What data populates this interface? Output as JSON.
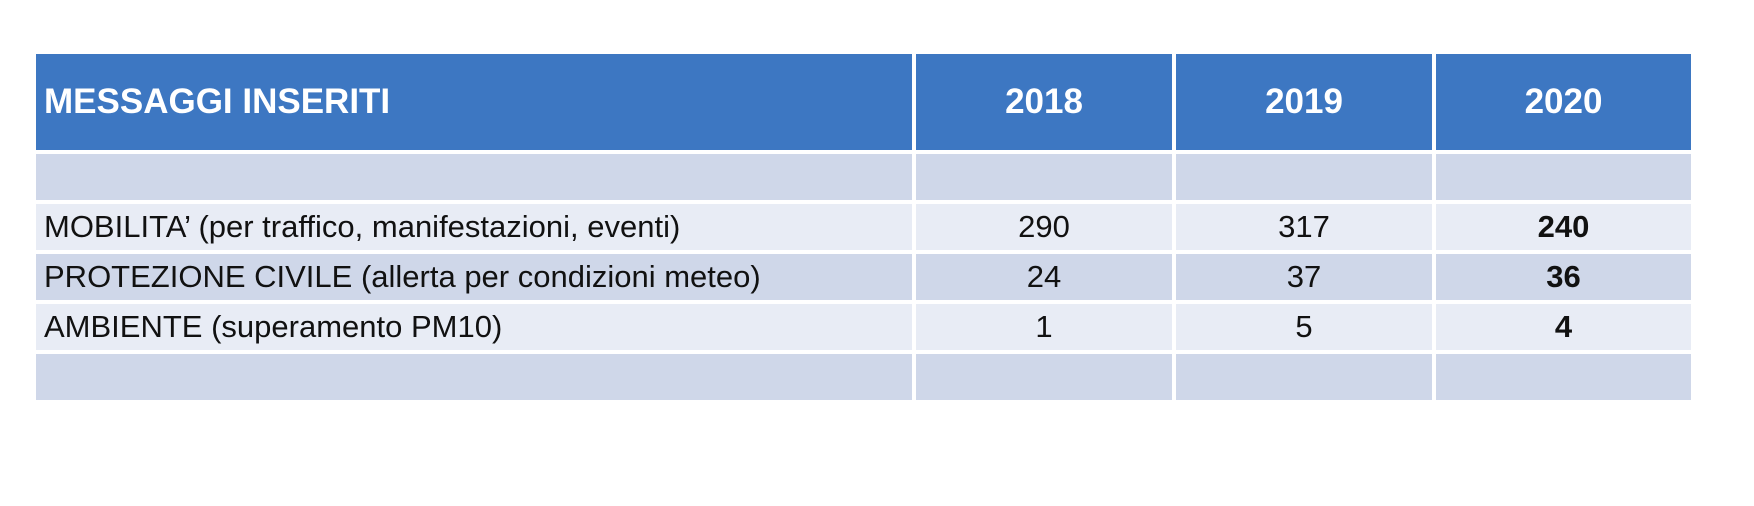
{
  "table": {
    "header": {
      "label": "MESSAGGI INSERITI",
      "years": [
        "2018",
        "2019",
        "2020"
      ]
    },
    "rows": [
      {
        "label": "",
        "values": [
          "",
          "",
          ""
        ]
      },
      {
        "label": "MOBILITA’ (per traffico, manifestazioni, eventi)",
        "values": [
          "290",
          "317",
          "240"
        ]
      },
      {
        "label": "PROTEZIONE CIVILE (allerta per condizioni meteo)",
        "values": [
          "24",
          "37",
          "36"
        ]
      },
      {
        "label": "AMBIENTE (superamento PM10)",
        "values": [
          "1",
          "5",
          "4"
        ]
      },
      {
        "label": "",
        "values": [
          "",
          "",
          ""
        ]
      }
    ]
  },
  "colors": {
    "header_bg": "#3d77c2",
    "row_dark": "#cfd7e9",
    "row_light": "#e8ecf5"
  }
}
